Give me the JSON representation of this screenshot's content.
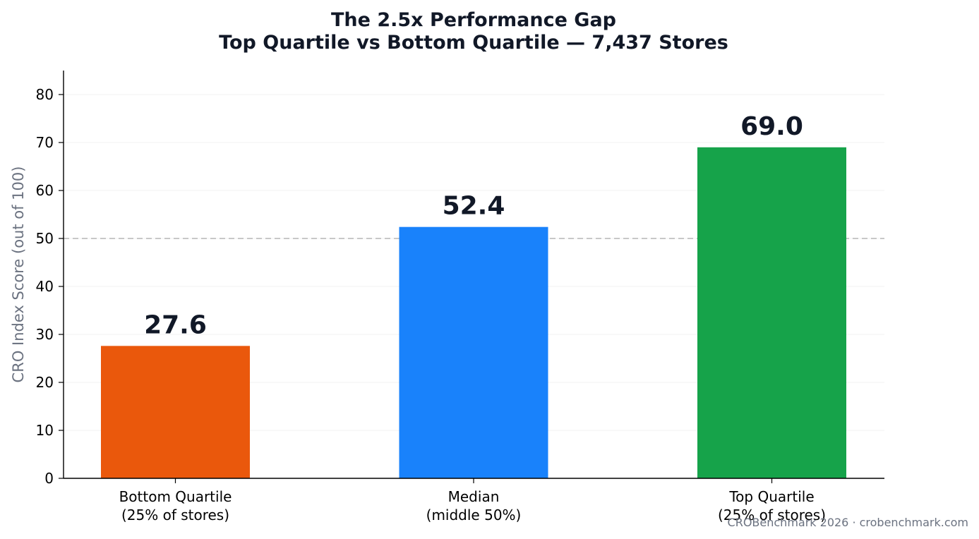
{
  "chart_data": {
    "type": "bar",
    "title": [
      "The 2.5x Performance Gap",
      "Top Quartile vs Bottom Quartile — 7,437 Stores"
    ],
    "categories": [
      [
        "Bottom Quartile",
        "(25% of stores)"
      ],
      [
        "Median",
        "(middle 50%)"
      ],
      [
        "Top Quartile",
        "(25% of stores)"
      ]
    ],
    "values": [
      27.6,
      52.4,
      69.0
    ],
    "value_labels": [
      "27.6",
      "52.4",
      "69.0"
    ],
    "colors": [
      "#ea580c",
      "#1982fb",
      "#16a34a"
    ],
    "ylabel": "CRO Index Score (out of 100)",
    "xlabel": "",
    "ylim": [
      0,
      85
    ],
    "yticks": [
      0,
      10,
      20,
      30,
      40,
      50,
      60,
      70,
      80
    ],
    "reference_line": {
      "y": 50,
      "style": "dashed",
      "color": "#c8c8c8"
    },
    "grid": "horizontal"
  },
  "footer": "CROBenchmark 2026 · crobenchmark.com"
}
